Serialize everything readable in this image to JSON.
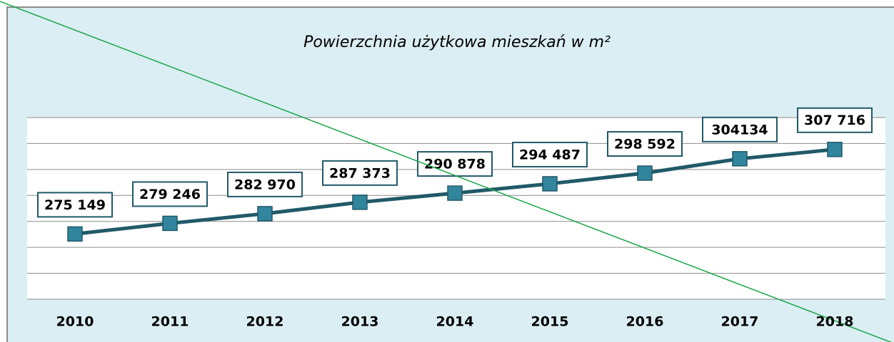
{
  "chart_data": {
    "type": "line",
    "title": "Powierzchnia użytkowa mieszkań w m²",
    "categories": [
      "2010",
      "2011",
      "2012",
      "2013",
      "2014",
      "2015",
      "2016",
      "2017",
      "2018"
    ],
    "values": [
      275149,
      279246,
      282970,
      287373,
      290878,
      294487,
      298592,
      304134,
      307716
    ],
    "value_labels": [
      "275 149",
      "279 246",
      "282 970",
      "287 373",
      "290 878",
      "294 487",
      "298 592",
      "304134",
      "307 716"
    ],
    "color": "#215968",
    "marker_color": "#31859c",
    "ylim": [
      250000,
      320000
    ],
    "yticks": [
      250000,
      260000,
      270000,
      280000,
      290000,
      300000,
      310000,
      320000
    ],
    "grid": true
  }
}
